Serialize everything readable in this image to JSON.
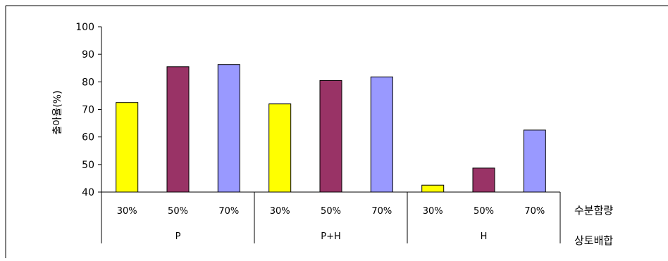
{
  "chart_data": {
    "type": "bar",
    "ylabel": "출아율(%)",
    "ylim": [
      40,
      100
    ],
    "yticks": [
      40,
      50,
      60,
      70,
      80,
      90,
      100
    ],
    "grid": false,
    "level_names": [
      "수분함량",
      "상토배합"
    ],
    "groups": [
      "P",
      "P+H",
      "H"
    ],
    "categories": [
      "30%",
      "50%",
      "70%"
    ],
    "series_colors": [
      "#FFFF00",
      "#993366",
      "#9999FF"
    ],
    "values": [
      [
        72.5,
        85.5,
        86.3
      ],
      [
        72.0,
        80.5,
        81.8
      ],
      [
        42.5,
        48.7,
        62.5
      ]
    ]
  }
}
